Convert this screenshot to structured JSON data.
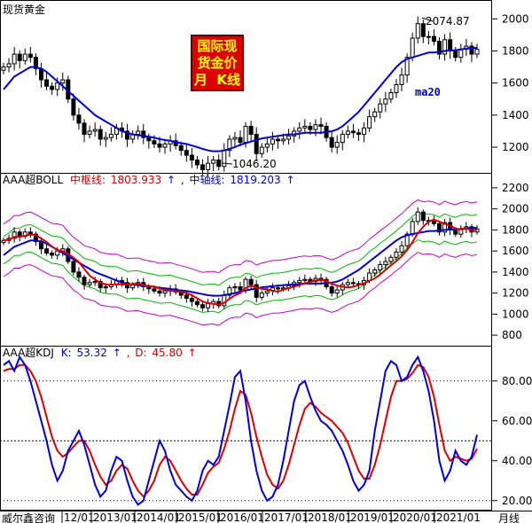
{
  "app": {
    "footer_brand": "威尔鑫咨询",
    "period_label": "月线"
  },
  "colors": {
    "up": "#000000",
    "down": "#000000",
    "ma": "#0000dd",
    "mid": "#dd0000",
    "inner": "#00bb00",
    "outer": "#cc00cc",
    "kdj_k": "#0000dd",
    "kdj_d": "#dd0000",
    "stamp_bg": "#dd0000",
    "stamp_text": "#ffff00"
  },
  "panels": {
    "price": {
      "title": "现货黄金",
      "high_label": "2074.87",
      "low_label": "1046.20",
      "ma_label": "ma20",
      "stamp_lines": [
        "国际现",
        "货金价",
        "月  K线"
      ],
      "ticks": [
        "2000",
        "1800",
        "1600",
        "1400",
        "1200"
      ]
    },
    "boll": {
      "title": "AAA超BOLL",
      "mid_label": "中枢线:",
      "mid_value": "1803.933",
      "axis_label": "中轴线:",
      "axis_value": "1819.203",
      "ticks": [
        "2200",
        "2000",
        "1800",
        "1600",
        "1400",
        "1200",
        "1000",
        "800"
      ]
    },
    "kdj": {
      "title": "AAA超KDJ",
      "k_label": "K:",
      "k_value": "53.32",
      "d_label": "D:",
      "d_value": "45.80",
      "ticks": [
        "80.00",
        "60.00",
        "40.00",
        "20.00"
      ],
      "ref_levels": [
        80,
        50,
        20
      ]
    }
  },
  "chart_data": [
    {
      "type": "candlestick",
      "title": "现货黄金",
      "x_ticks": [
        "12/01",
        "2013/01",
        "2014/01",
        "2015/01",
        "2016/01",
        "2017/01",
        "2018/01",
        "2019/01",
        "2020/01",
        "2021/01"
      ],
      "ylim": [
        1040,
        2090
      ],
      "ohlc_close_approx": [
        1700,
        1720,
        1780,
        1740,
        1780,
        1760,
        1690,
        1620,
        1580,
        1560,
        1600,
        1620,
        1500,
        1400,
        1350,
        1280,
        1300,
        1310,
        1250,
        1260,
        1280,
        1320,
        1300,
        1250,
        1280,
        1300,
        1260,
        1240,
        1220,
        1200,
        1220,
        1240,
        1210,
        1180,
        1150,
        1120,
        1090,
        1060,
        1100,
        1120,
        1080,
        1180,
        1250,
        1260,
        1230,
        1330,
        1280,
        1160,
        1200,
        1220,
        1250,
        1240,
        1250,
        1270,
        1300,
        1320,
        1330,
        1310,
        1340,
        1330,
        1260,
        1200,
        1230,
        1280,
        1300,
        1290,
        1280,
        1320,
        1390,
        1420,
        1470,
        1500,
        1540,
        1590,
        1650,
        1760,
        1880,
        1970,
        1890,
        1890,
        1860,
        1780,
        1870,
        1800,
        1760,
        1810,
        1830,
        1780,
        1810
      ],
      "series": [
        {
          "name": "ma20",
          "values_approx": [
            1560,
            1600,
            1640,
            1660,
            1680,
            1700,
            1700,
            1690,
            1670,
            1640,
            1610,
            1580,
            1550,
            1520,
            1490,
            1460,
            1430,
            1400,
            1380,
            1360,
            1340,
            1320,
            1300,
            1290,
            1280,
            1275,
            1270,
            1265,
            1260,
            1250,
            1245,
            1240,
            1230,
            1225,
            1220,
            1210,
            1200,
            1190,
            1180,
            1175,
            1175,
            1180,
            1190,
            1200,
            1215,
            1225,
            1235,
            1245,
            1255,
            1260,
            1265,
            1270,
            1275,
            1280,
            1280,
            1285,
            1290,
            1290,
            1290,
            1290,
            1295,
            1300,
            1310,
            1330,
            1360,
            1390,
            1420,
            1460,
            1500,
            1540,
            1580,
            1620,
            1660,
            1700,
            1730,
            1750,
            1760,
            1770,
            1780,
            1790,
            1790,
            1795,
            1800,
            1803,
            1805,
            1810,
            1815,
            1819,
            1819
          ]
        }
      ],
      "annotations": [
        "2074.87",
        "1046.20",
        "ma20"
      ]
    },
    {
      "type": "bollinger",
      "title": "AAA超BOLL",
      "ylim": [
        700,
        2300
      ],
      "series": [
        {
          "name": "中枢线",
          "last": 1803.933
        },
        {
          "name": "中轴线",
          "last": 1819.203
        }
      ],
      "y_ticks": [
        2200,
        2000,
        1800,
        1600,
        1400,
        1200,
        1000,
        800
      ]
    },
    {
      "type": "line",
      "title": "AAA超KDJ",
      "ylim": [
        15,
        95
      ],
      "y_ticks": [
        80,
        60,
        40,
        20
      ],
      "series": [
        {
          "name": "K",
          "last": 53.32,
          "values_approx": [
            88,
            90,
            85,
            92,
            88,
            80,
            70,
            60,
            50,
            38,
            30,
            35,
            45,
            50,
            55,
            48,
            38,
            28,
            22,
            25,
            35,
            42,
            40,
            30,
            22,
            18,
            20,
            30,
            40,
            50,
            45,
            35,
            28,
            25,
            22,
            20,
            25,
            35,
            40,
            38,
            42,
            55,
            68,
            82,
            85,
            70,
            50,
            35,
            25,
            20,
            22,
            28,
            40,
            55,
            70,
            78,
            80,
            72,
            65,
            60,
            58,
            55,
            50,
            45,
            38,
            30,
            25,
            28,
            35,
            55,
            70,
            85,
            90,
            88,
            80,
            82,
            88,
            92,
            85,
            75,
            60,
            40,
            30,
            35,
            45,
            40,
            38,
            42,
            53
          ]
        },
        {
          "name": "D",
          "last": 45.8,
          "values_approx": [
            85,
            86,
            86,
            88,
            88,
            85,
            80,
            72,
            62,
            52,
            45,
            42,
            44,
            47,
            50,
            50,
            45,
            38,
            32,
            28,
            30,
            35,
            38,
            36,
            30,
            25,
            22,
            25,
            30,
            38,
            42,
            40,
            35,
            30,
            26,
            23,
            23,
            28,
            34,
            37,
            39,
            46,
            55,
            66,
            75,
            73,
            64,
            52,
            42,
            33,
            28,
            26,
            30,
            38,
            48,
            58,
            66,
            69,
            67,
            64,
            62,
            60,
            57,
            54,
            49,
            42,
            35,
            31,
            31,
            38,
            48,
            60,
            72,
            80,
            80,
            81,
            84,
            88,
            87,
            82,
            72,
            58,
            45,
            40,
            42,
            41,
            40,
            41,
            46
          ]
        }
      ]
    }
  ]
}
